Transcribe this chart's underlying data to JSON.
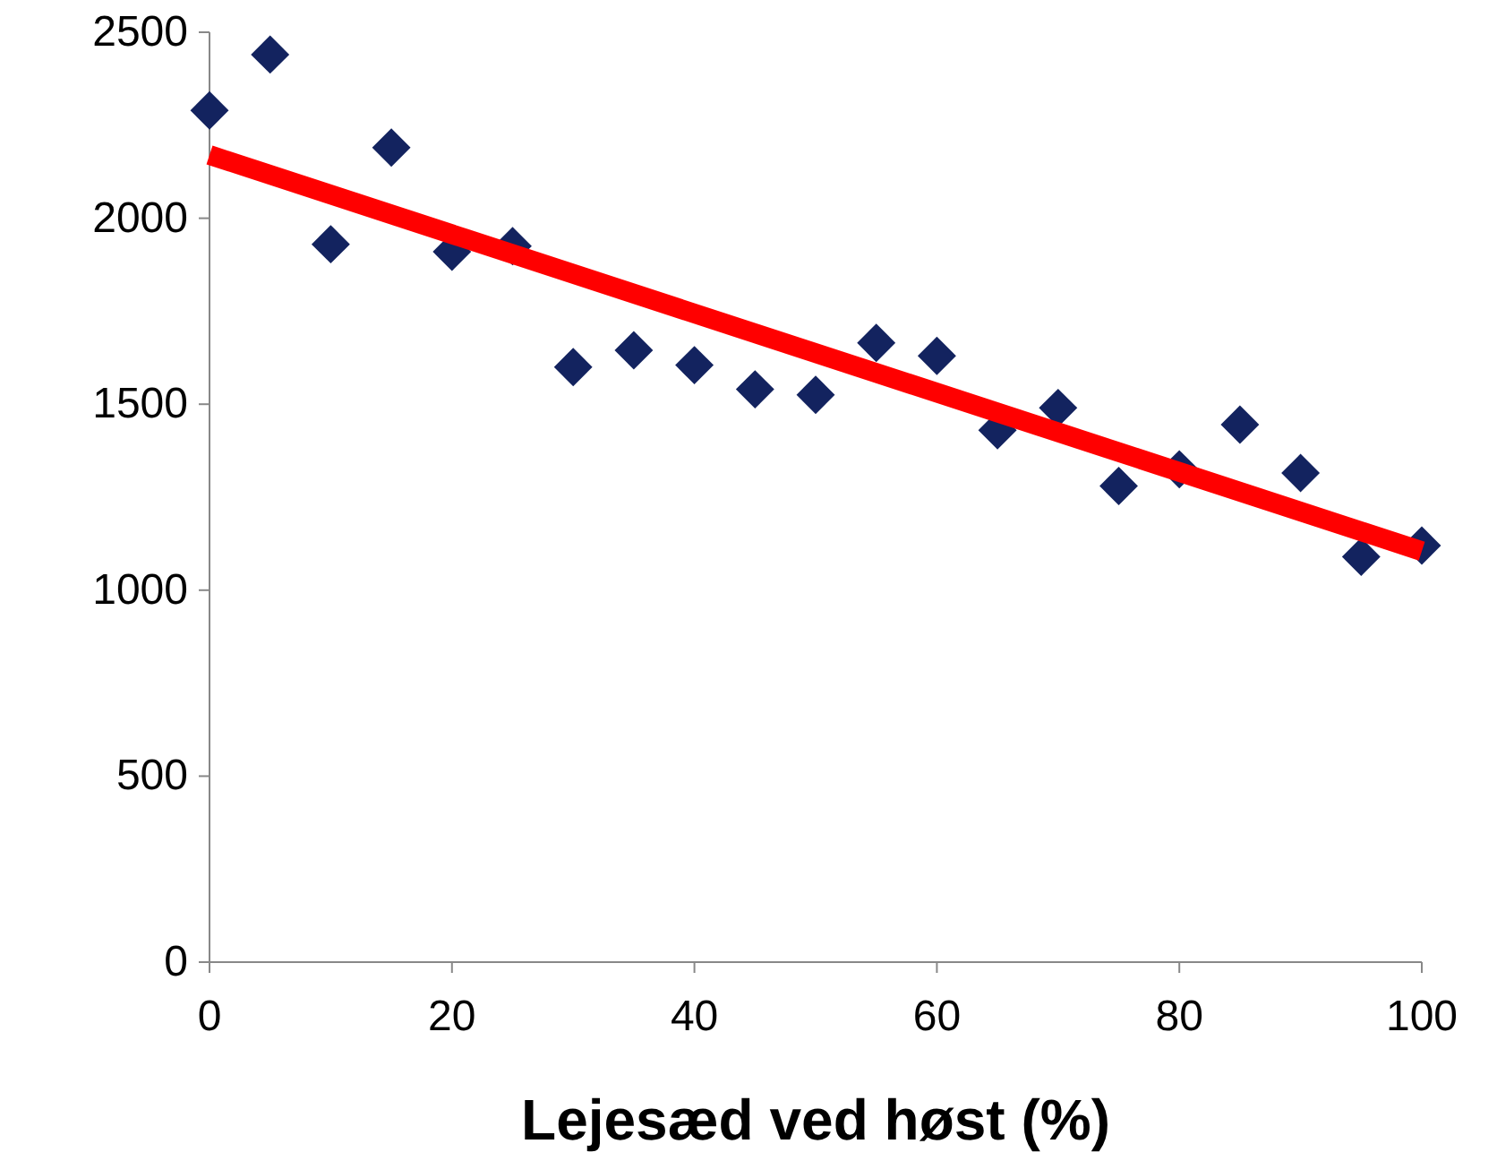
{
  "chart_data": {
    "type": "scatter",
    "xlabel": "Lejesæd ved høst (%)",
    "xlim": [
      0,
      100
    ],
    "xticks": [
      0,
      20,
      40,
      60,
      80,
      100
    ],
    "ylim": [
      0,
      2500
    ],
    "yticks": [
      0,
      500,
      1000,
      1500,
      2000,
      2500
    ],
    "grid": false,
    "marker": "diamond",
    "series": [
      {
        "color": "#13235f",
        "x": [
          0,
          5,
          10,
          15,
          20,
          25,
          30,
          35,
          40,
          45,
          50,
          55,
          60,
          65,
          70,
          75,
          80,
          85,
          90,
          95,
          100
        ],
        "values": [
          2290,
          2440,
          1930,
          2190,
          1910,
          1925,
          1600,
          1645,
          1605,
          1540,
          1525,
          1665,
          1630,
          1430,
          1490,
          1280,
          1325,
          1445,
          1315,
          1090,
          1120
        ]
      },
      {
        "type": "line",
        "color": "#ff0000",
        "marker": "none",
        "line_style": "solid",
        "x": [
          0,
          100
        ],
        "values": [
          2170,
          1105
        ]
      }
    ]
  }
}
